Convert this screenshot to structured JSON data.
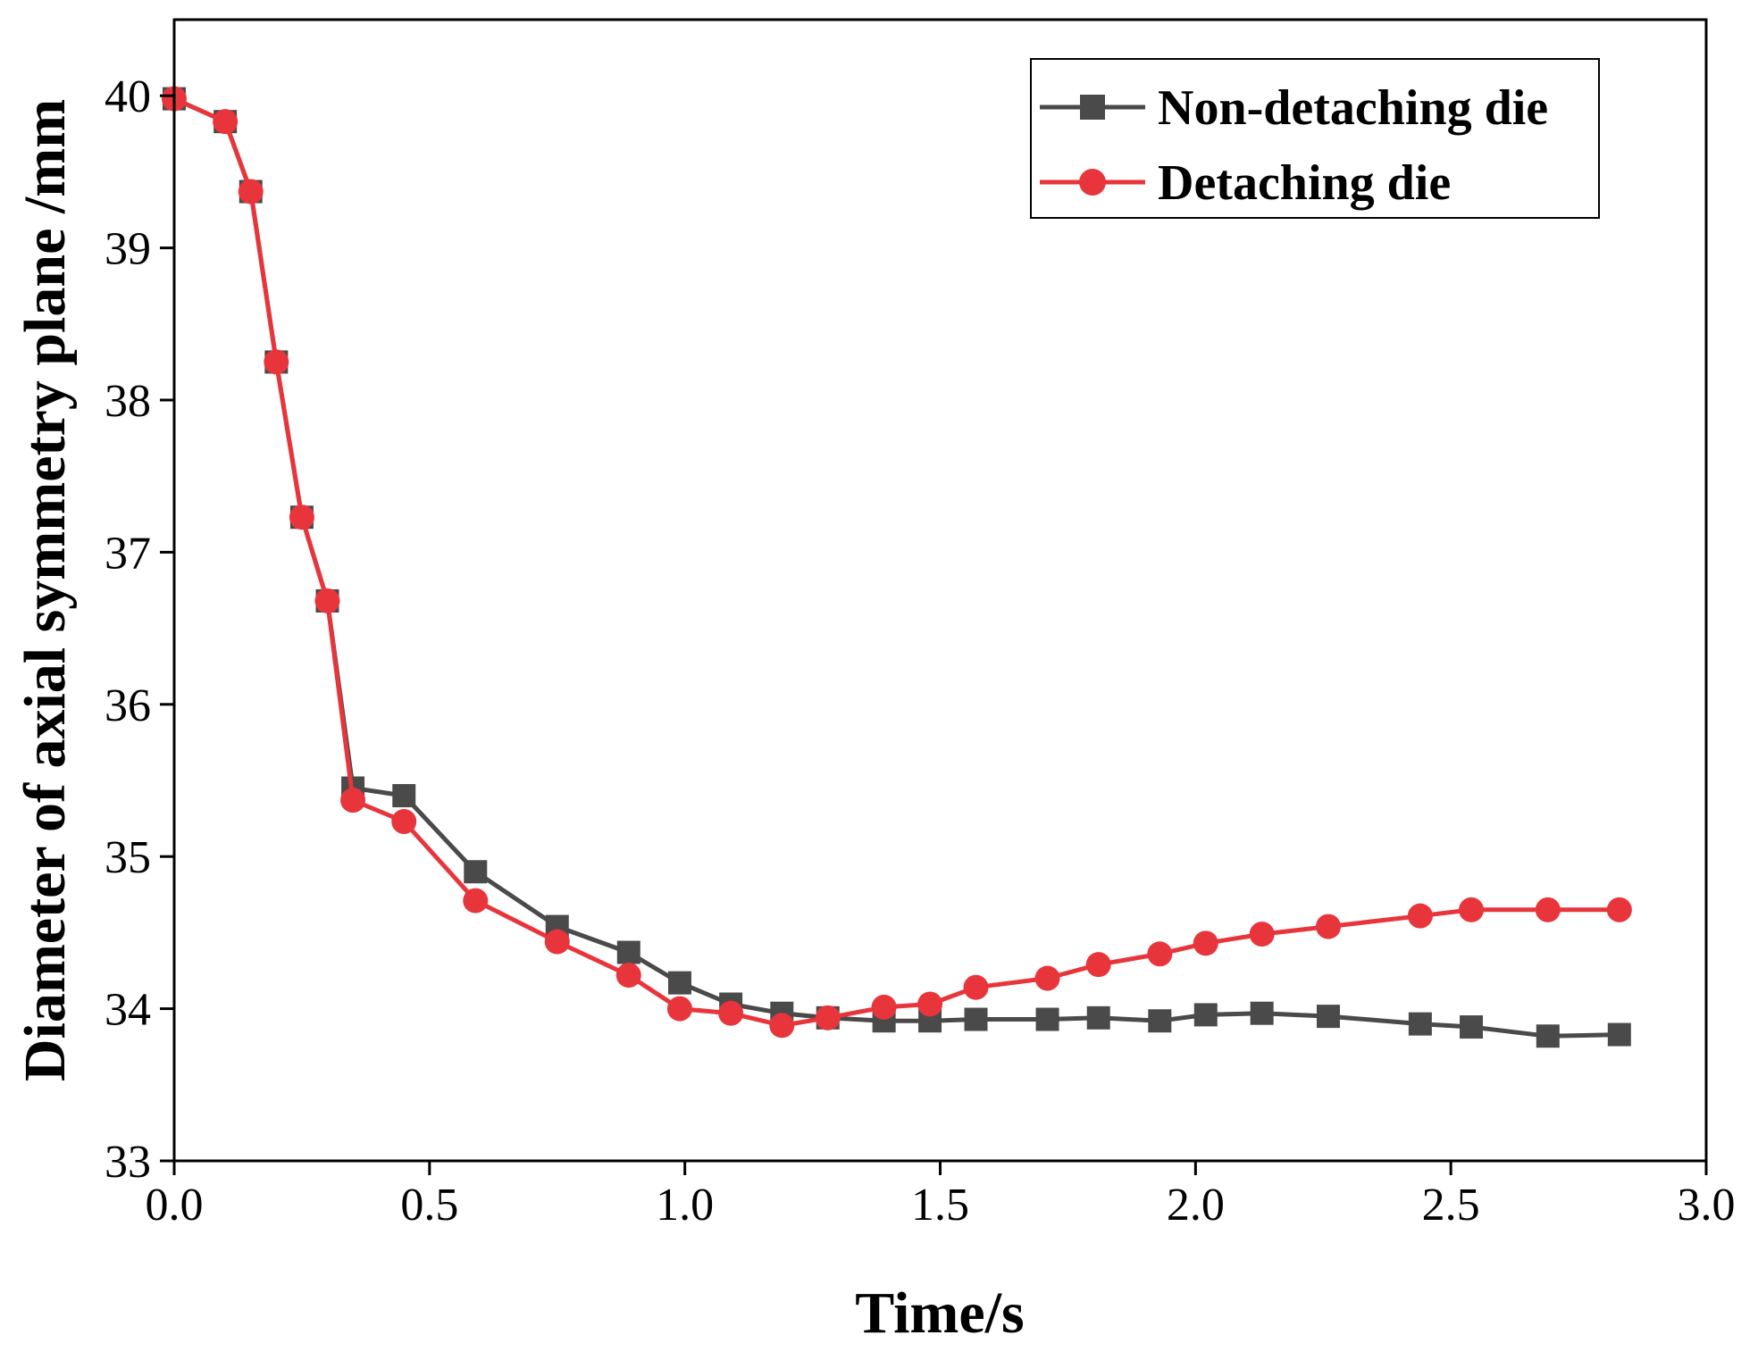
{
  "chart_data": {
    "type": "line",
    "title": "",
    "xlabel": "Time/s",
    "ylabel": "Diameter of axial symmetry plane /mm",
    "xlim": [
      0.0,
      3.0
    ],
    "ylim": [
      33,
      40.5
    ],
    "xticks": [
      0.0,
      0.5,
      1.0,
      1.5,
      2.0,
      2.5,
      3.0
    ],
    "xtick_labels": [
      "0.0",
      "0.5",
      "1.0",
      "1.5",
      "2.0",
      "2.5",
      "3.0"
    ],
    "yticks": [
      33,
      34,
      35,
      36,
      37,
      38,
      39,
      40
    ],
    "ytick_labels": [
      "33",
      "34",
      "35",
      "36",
      "37",
      "38",
      "39",
      "40"
    ],
    "grid": false,
    "legend_position": "top-right",
    "series": [
      {
        "name": "Non-detaching die",
        "color": "#4a4a4a",
        "marker": "square",
        "x": [
          0.0,
          0.1,
          0.15,
          0.2,
          0.25,
          0.3,
          0.35,
          0.45,
          0.59,
          0.75,
          0.89,
          0.99,
          1.09,
          1.19,
          1.28,
          1.39,
          1.48,
          1.57,
          1.71,
          1.81,
          1.93,
          2.02,
          2.13,
          2.26,
          2.44,
          2.54,
          2.69,
          2.83
        ],
        "y": [
          39.98,
          39.83,
          39.37,
          38.25,
          37.23,
          36.68,
          35.45,
          35.4,
          34.9,
          34.54,
          34.37,
          34.17,
          34.03,
          33.97,
          33.94,
          33.92,
          33.92,
          33.93,
          33.93,
          33.94,
          33.92,
          33.96,
          33.97,
          33.95,
          33.9,
          33.88,
          33.82,
          33.83
        ]
      },
      {
        "name": "Detaching die",
        "color": "#e8353b",
        "marker": "circle",
        "x": [
          0.0,
          0.1,
          0.15,
          0.2,
          0.25,
          0.3,
          0.35,
          0.45,
          0.59,
          0.75,
          0.89,
          0.99,
          1.09,
          1.19,
          1.28,
          1.39,
          1.48,
          1.57,
          1.71,
          1.81,
          1.93,
          2.02,
          2.13,
          2.26,
          2.44,
          2.54,
          2.69,
          2.83
        ],
        "y": [
          39.98,
          39.83,
          39.37,
          38.25,
          37.23,
          36.68,
          35.37,
          35.23,
          34.71,
          34.44,
          34.22,
          34.0,
          33.97,
          33.89,
          33.94,
          34.01,
          34.03,
          34.14,
          34.2,
          34.29,
          34.36,
          34.43,
          34.49,
          34.54,
          34.61,
          34.65,
          34.65,
          34.65
        ]
      }
    ]
  }
}
